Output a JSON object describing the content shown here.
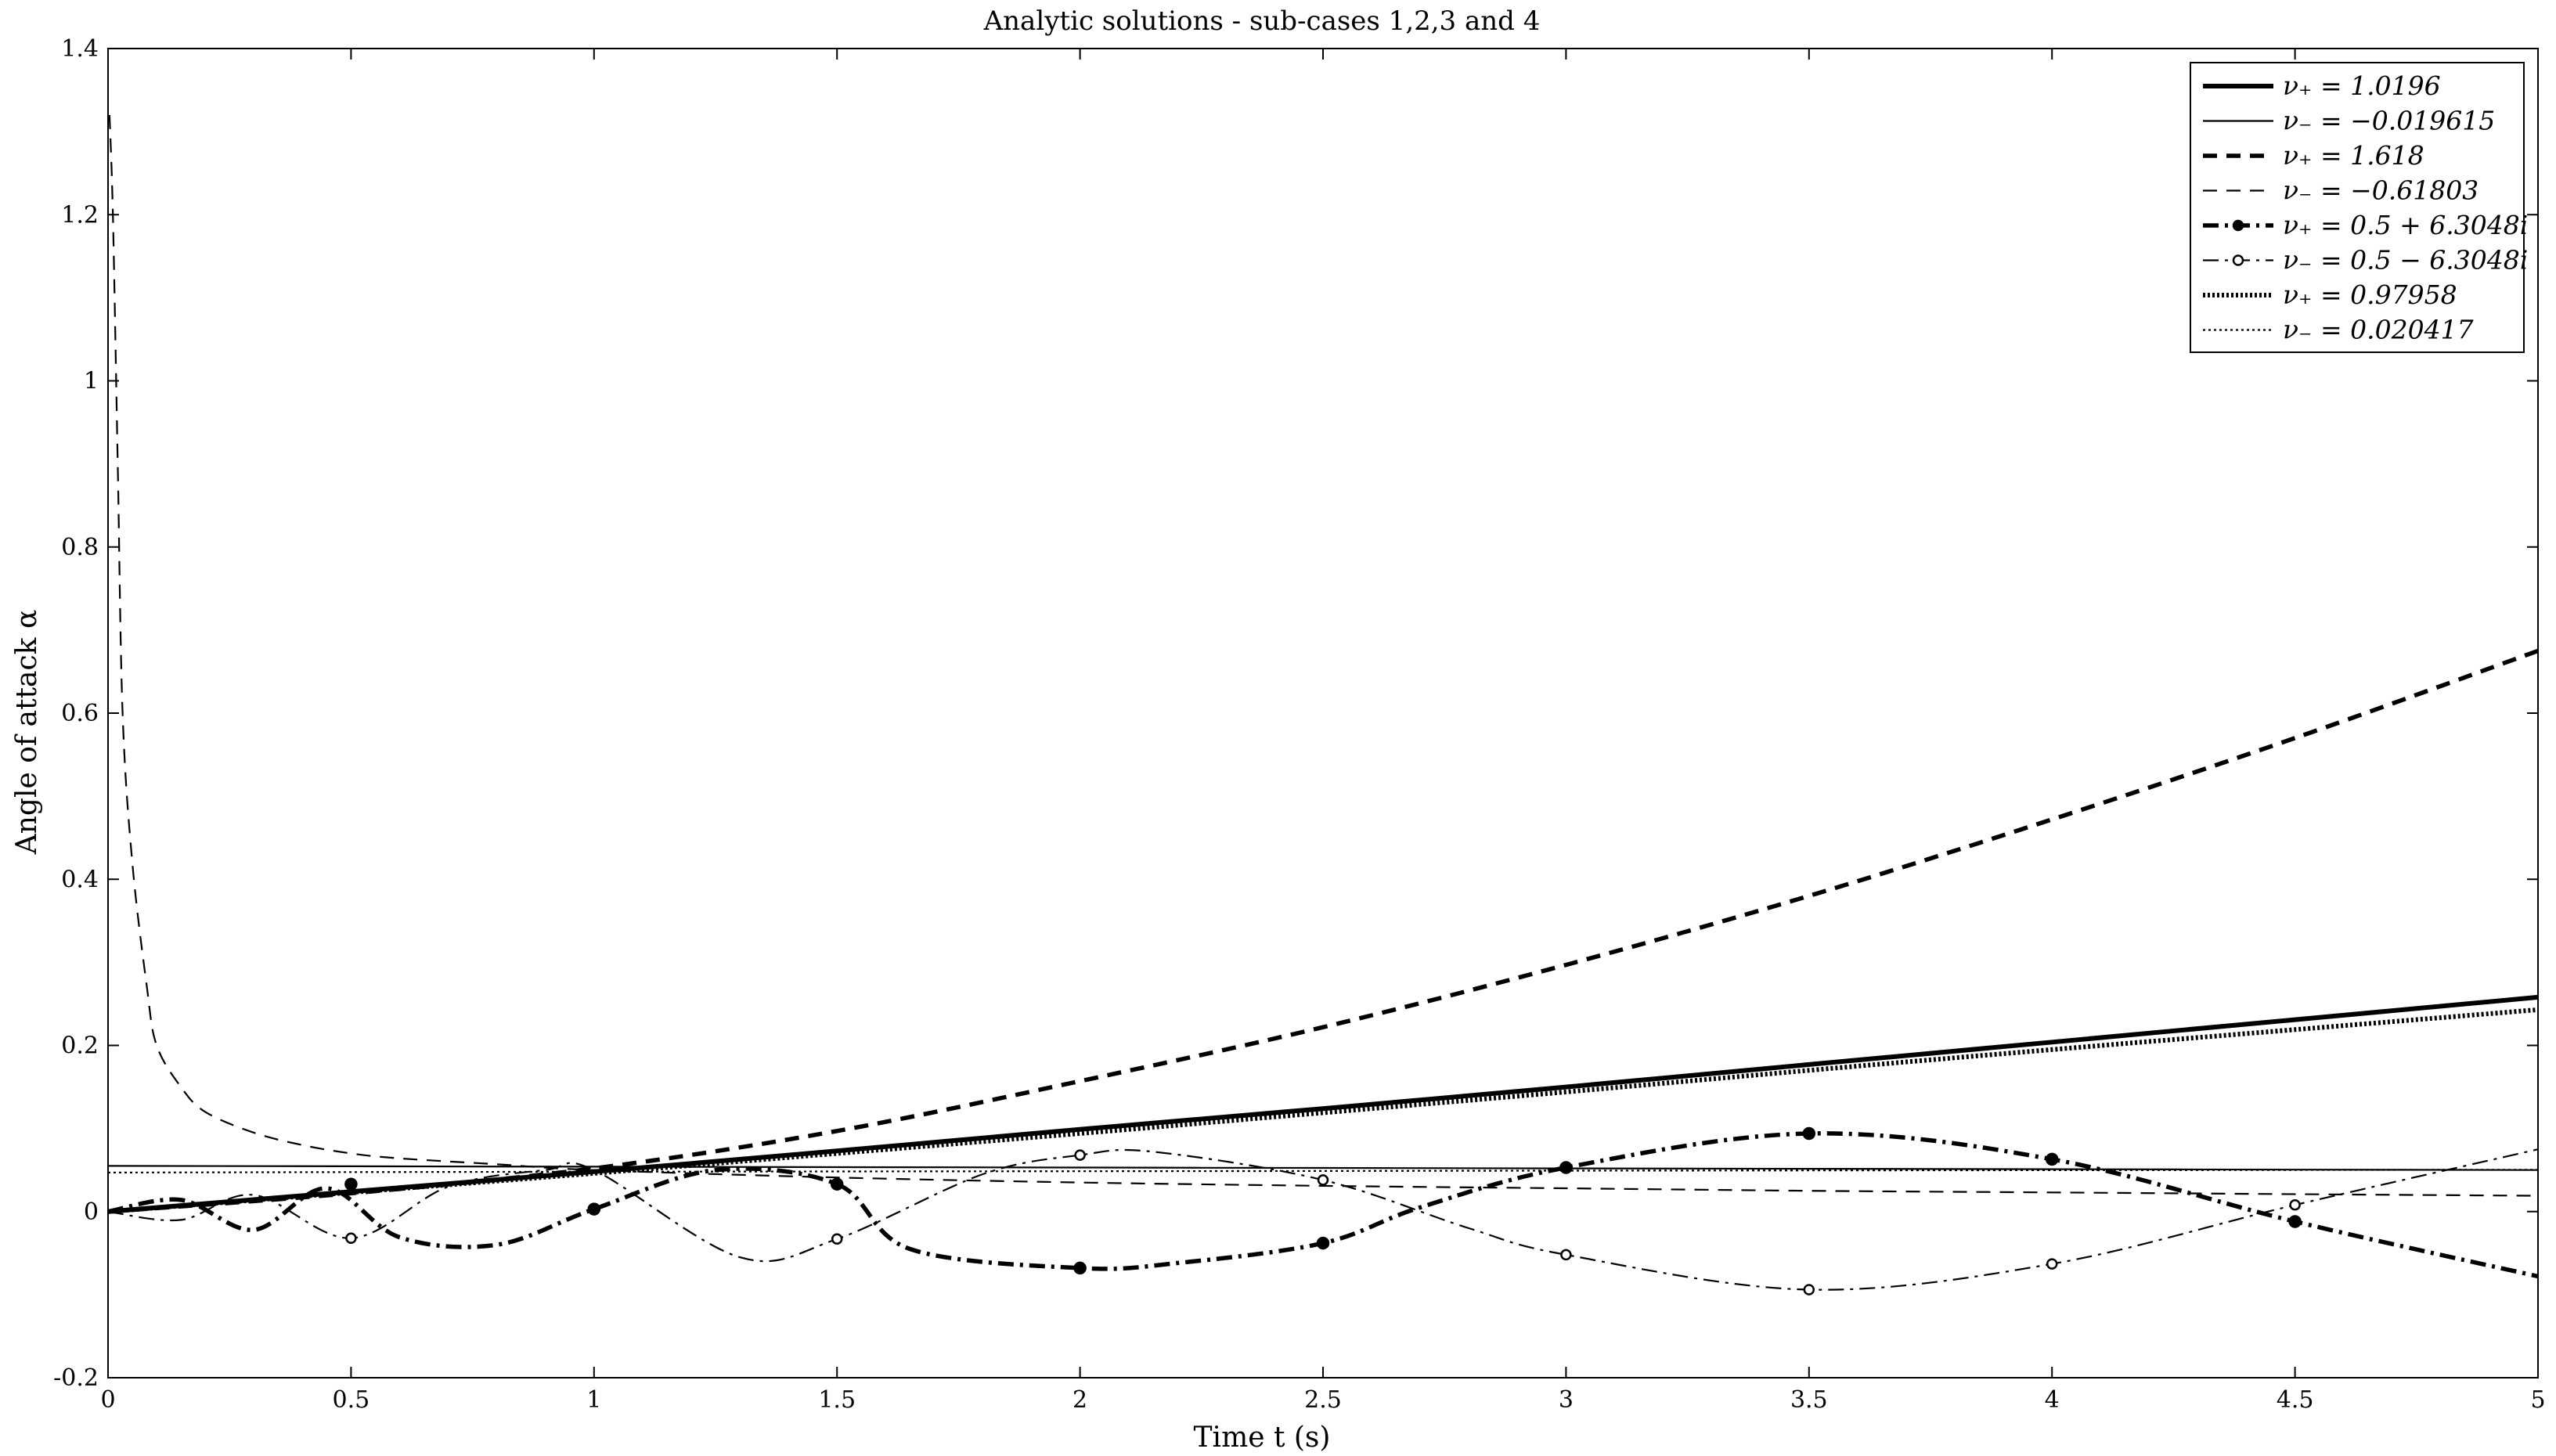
{
  "chart_data": {
    "type": "line",
    "title": "Analytic solutions - sub-cases 1,2,3 and 4",
    "xlabel": "Time t (s)",
    "ylabel": "Angle of attack α",
    "xlim": [
      0,
      5
    ],
    "ylim": [
      -0.2,
      1.4
    ],
    "xticks": [
      0,
      0.5,
      1,
      1.5,
      2,
      2.5,
      3,
      3.5,
      4,
      4.5,
      5
    ],
    "yticks": [
      -0.2,
      0,
      0.2,
      0.4,
      0.6,
      0.8,
      1,
      1.2,
      1.4
    ],
    "xtick_labels": [
      "0",
      "0.5",
      "1",
      "1.5",
      "2",
      "2.5",
      "3",
      "3.5",
      "4",
      "4.5",
      "5"
    ],
    "ytick_labels": [
      "-0.2",
      "0",
      "0.2",
      "0.4",
      "0.6",
      "0.8",
      "1",
      "1.2",
      "1.4"
    ],
    "grid": false,
    "legend_position": "top-right",
    "series": [
      {
        "name": "ν₊ = 1.0196",
        "style": "solid-thick",
        "x": [
          0,
          0.5,
          1,
          1.5,
          2,
          2.5,
          3,
          3.5,
          4,
          4.5,
          5
        ],
        "y": [
          0,
          0.024,
          0.048,
          0.073,
          0.099,
          0.124,
          0.15,
          0.177,
          0.204,
          0.231,
          0.258
        ]
      },
      {
        "name": "ν₋ = −0.019615",
        "style": "solid-thin",
        "x": [
          0,
          0.5,
          1,
          1.5,
          2,
          2.5,
          3,
          3.5,
          4,
          4.5,
          5
        ],
        "y": [
          0.055,
          0.0545,
          0.054,
          0.0535,
          0.053,
          0.0525,
          0.052,
          0.0515,
          0.051,
          0.0505,
          0.05
        ]
      },
      {
        "name": "ν₊ = 1.618",
        "style": "dashed-thick",
        "x": [
          0,
          0.5,
          1,
          1.5,
          2,
          2.5,
          3,
          3.5,
          4,
          4.5,
          5
        ],
        "y": [
          0,
          0.022,
          0.052,
          0.097,
          0.157,
          0.222,
          0.297,
          0.38,
          0.472,
          0.57,
          0.675
        ]
      },
      {
        "name": "ν₋ = −0.61803",
        "style": "dashed-thin",
        "x": [
          0.003,
          0.01,
          0.02,
          0.03,
          0.05,
          0.08,
          0.1,
          0.15,
          0.2,
          0.3,
          0.4,
          0.5,
          0.6,
          0.8,
          1,
          1.5,
          2,
          2.5,
          3,
          3.5,
          4,
          4.5,
          5
        ],
        "y": [
          1.32,
          1.2,
          0.9,
          0.6,
          0.42,
          0.27,
          0.2,
          0.15,
          0.12,
          0.095,
          0.08,
          0.07,
          0.064,
          0.057,
          0.05,
          0.041,
          0.035,
          0.031,
          0.028,
          0.025,
          0.023,
          0.021,
          0.019
        ]
      },
      {
        "name": "ν₊ = 0.5 + 6.3048i",
        "style": "dashdot-thick",
        "x": [
          0,
          0.15,
          0.3,
          0.45,
          0.6,
          0.8,
          1,
          1.25,
          1.5,
          1.65,
          2,
          2.2,
          2.5,
          2.7,
          3,
          3.5,
          4,
          4.5,
          5
        ],
        "y": [
          0,
          0.014,
          -0.022,
          0.028,
          -0.031,
          -0.04,
          0.003,
          0.05,
          0.033,
          -0.045,
          -0.068,
          -0.062,
          -0.038,
          0.005,
          0.053,
          0.094,
          0.063,
          -0.012,
          -0.078
        ],
        "markers": [
          [
            0.5,
            0.033
          ],
          [
            1,
            0.003
          ],
          [
            1.5,
            0.033
          ],
          [
            2,
            -0.068
          ],
          [
            2.5,
            -0.038
          ],
          [
            3,
            0.053
          ],
          [
            3.5,
            0.094
          ],
          [
            4,
            0.063
          ],
          [
            4.5,
            -0.012
          ]
        ],
        "marker": "filled-circle"
      },
      {
        "name": "ν₋ = 0.5 − 6.3048i",
        "style": "dashdot-thin",
        "x": [
          0,
          0.15,
          0.3,
          0.5,
          0.7,
          0.9,
          1,
          1.3,
          1.5,
          1.8,
          2,
          2.15,
          2.5,
          2.8,
          3,
          3.5,
          4,
          4.5,
          5
        ],
        "y": [
          0,
          -0.01,
          0.02,
          -0.032,
          0.03,
          0.05,
          0.05,
          -0.055,
          -0.033,
          0.045,
          0.068,
          0.072,
          0.038,
          -0.02,
          -0.052,
          -0.094,
          -0.063,
          0.008,
          0.075
        ],
        "markers": [
          [
            0.5,
            -0.032
          ],
          [
            1.5,
            -0.033
          ],
          [
            2,
            0.068
          ],
          [
            2.5,
            0.038
          ],
          [
            3,
            -0.052
          ],
          [
            3.5,
            -0.094
          ],
          [
            4,
            -0.063
          ],
          [
            4.5,
            0.008
          ]
        ],
        "marker": "open-circle"
      },
      {
        "name": "ν₊ = 0.97958",
        "style": "dotted-thick",
        "x": [
          0,
          0.5,
          1,
          1.5,
          2,
          2.5,
          3,
          3.5,
          4,
          4.5,
          5
        ],
        "y": [
          0,
          0.023,
          0.046,
          0.07,
          0.094,
          0.119,
          0.144,
          0.17,
          0.195,
          0.219,
          0.243
        ]
      },
      {
        "name": "ν₋ = 0.020417",
        "style": "dotted-thin",
        "x": [
          0,
          0.5,
          1,
          1.5,
          2,
          2.5,
          3,
          3.5,
          4,
          4.5,
          5
        ],
        "y": [
          0.047,
          0.0475,
          0.048,
          0.0483,
          0.0486,
          0.0489,
          0.0492,
          0.0495,
          0.0498,
          0.0501,
          0.0504
        ]
      }
    ]
  }
}
